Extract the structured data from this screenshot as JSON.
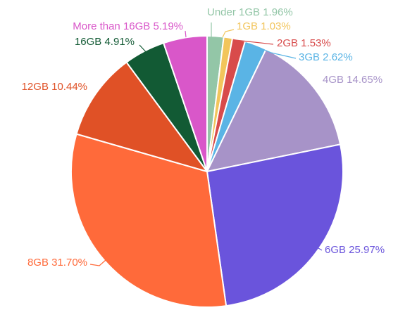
{
  "chart_data": {
    "type": "pie",
    "title": "",
    "slices": [
      {
        "label": "Under 1GB",
        "value": 1.96,
        "display": "1.96%",
        "color": "#93c6a7"
      },
      {
        "label": "1GB",
        "value": 1.03,
        "display": "1.03%",
        "color": "#f2c55c"
      },
      {
        "label": "2GB",
        "value": 1.53,
        "display": "1.53%",
        "color": "#d84b4b"
      },
      {
        "label": "3GB",
        "value": 2.62,
        "display": "2.62%",
        "color": "#5ab4e5"
      },
      {
        "label": "4GB",
        "value": 14.65,
        "display": "14.65%",
        "color": "#a793c8"
      },
      {
        "label": "6GB",
        "value": 25.97,
        "display": "25.97%",
        "color": "#6a54dc"
      },
      {
        "label": "8GB",
        "value": 31.7,
        "display": "31.70%",
        "color": "#ff6a3a"
      },
      {
        "label": "12GB",
        "value": 10.44,
        "display": "10.44%",
        "color": "#e05126"
      },
      {
        "label": "16GB",
        "value": 4.91,
        "display": "4.91%",
        "color": "#125a34"
      },
      {
        "label": "More than 16GB",
        "value": 5.19,
        "display": "5.19%",
        "color": "#d957c9"
      }
    ],
    "start_angle": "12 o'clock",
    "direction": "clockwise",
    "label_style": "outside, colored to match slice, with leader lines"
  }
}
